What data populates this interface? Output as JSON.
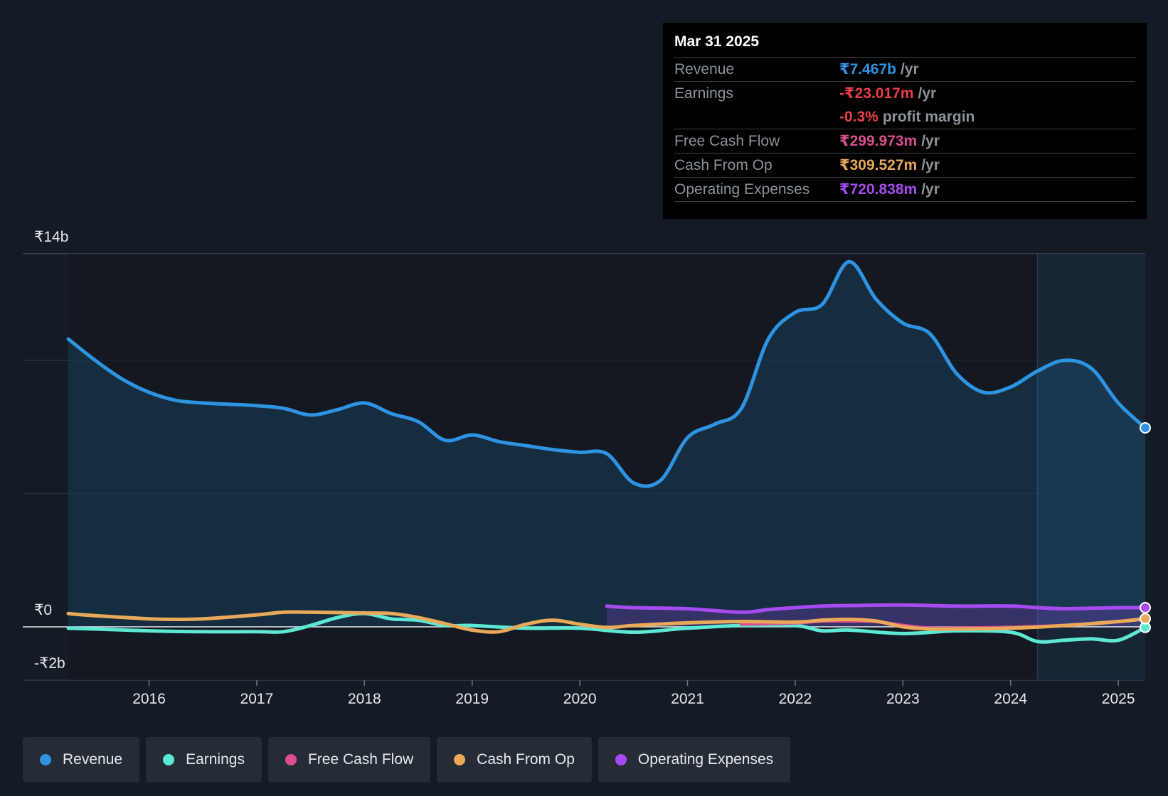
{
  "tooltip": {
    "date": "Mar 31 2025",
    "rows": [
      {
        "label": "Revenue",
        "value": "₹7.467b",
        "unit": "/yr",
        "color": "#2e93e0"
      },
      {
        "label": "Earnings",
        "value": "-₹23.017m",
        "unit": "/yr",
        "color": "#e8404a"
      },
      {
        "label": "",
        "value": "-0.3%",
        "unit": "profit margin",
        "color": "#e8404a"
      },
      {
        "label": "Free Cash Flow",
        "value": "₹299.973m",
        "unit": "/yr",
        "color": "#d94f8f"
      },
      {
        "label": "Cash From Op",
        "value": "₹309.527m",
        "unit": "/yr",
        "color": "#e8a95a"
      },
      {
        "label": "Operating Expenses",
        "value": "₹720.838m",
        "unit": "/yr",
        "color": "#a54bf0"
      }
    ]
  },
  "legend": [
    {
      "label": "Revenue",
      "color": "#2e93e0"
    },
    {
      "label": "Earnings",
      "color": "#5ee8d3"
    },
    {
      "label": "Free Cash Flow",
      "color": "#d94f8f"
    },
    {
      "label": "Cash From Op",
      "color": "#e8a95a"
    },
    {
      "label": "Operating Expenses",
      "color": "#a54bf0"
    }
  ],
  "chart_data": {
    "type": "line",
    "y_tick_labels": {
      "top": "₹14b",
      "zero": "₹0",
      "bottom": "-₹2b"
    },
    "ylim": [
      -2,
      14
    ],
    "xlim": [
      2015.25,
      2025.25
    ],
    "x_ticks": [
      2016,
      2017,
      2018,
      2019,
      2020,
      2021,
      2022,
      2023,
      2024,
      2025
    ],
    "x_tick_labels": [
      "2016",
      "2017",
      "2018",
      "2019",
      "2020",
      "2021",
      "2022",
      "2023",
      "2024",
      "2025"
    ],
    "highlight_from": 2024.25,
    "series": [
      {
        "name": "Revenue",
        "color": "#2e93e0",
        "fill": true,
        "x": [
          2015.25,
          2015.5,
          2015.75,
          2016,
          2016.25,
          2016.5,
          2016.75,
          2017,
          2017.25,
          2017.5,
          2017.75,
          2018,
          2018.25,
          2018.5,
          2018.75,
          2019,
          2019.25,
          2019.5,
          2019.75,
          2020,
          2020.25,
          2020.5,
          2020.75,
          2021,
          2021.25,
          2021.5,
          2021.75,
          2022,
          2022.25,
          2022.5,
          2022.75,
          2023,
          2023.25,
          2023.5,
          2023.75,
          2024,
          2024.25,
          2024.5,
          2024.75,
          2025,
          2025.25
        ],
        "values": [
          10.8,
          10,
          9.3,
          8.8,
          8.5,
          8.4,
          8.35,
          8.3,
          8.2,
          7.95,
          8.15,
          8.4,
          8.0,
          7.7,
          7.0,
          7.2,
          6.95,
          6.8,
          6.65,
          6.55,
          6.5,
          5.4,
          5.5,
          7.1,
          7.6,
          8.2,
          10.8,
          11.8,
          12.1,
          13.7,
          12.3,
          11.4,
          11.0,
          9.5,
          8.8,
          9.0,
          9.6,
          10.0,
          9.7,
          8.4,
          7.467
        ]
      },
      {
        "name": "Earnings",
        "color": "#5ee8d3",
        "x": [
          2015.25,
          2015.5,
          2016,
          2016.5,
          2017,
          2017.25,
          2017.5,
          2017.75,
          2018,
          2018.25,
          2018.5,
          2018.75,
          2019,
          2019.5,
          2020,
          2020.5,
          2021,
          2021.5,
          2022,
          2022.25,
          2022.5,
          2023,
          2023.5,
          2024,
          2024.25,
          2024.5,
          2024.75,
          2025,
          2025.25
        ],
        "values": [
          -0.05,
          -0.08,
          -0.15,
          -0.18,
          -0.18,
          -0.18,
          0.05,
          0.35,
          0.5,
          0.3,
          0.25,
          0.05,
          0.05,
          -0.05,
          -0.05,
          -0.2,
          -0.05,
          0.05,
          0.05,
          -0.15,
          -0.12,
          -0.25,
          -0.15,
          -0.2,
          -0.55,
          -0.5,
          -0.45,
          -0.5,
          -0.02
        ]
      },
      {
        "name": "Free Cash Flow",
        "color": "#d94f8f",
        "x": [
          2021.5,
          2022,
          2022.25,
          2022.5,
          2022.75,
          2023,
          2023.25,
          2023.5,
          2024,
          2024.5,
          2025,
          2025.25
        ],
        "values": [
          0.1,
          0.15,
          0.22,
          0.22,
          0.2,
          0.05,
          -0.05,
          -0.05,
          -0.02,
          0.05,
          0.2,
          0.3
        ]
      },
      {
        "name": "Cash From Op",
        "color": "#e8a95a",
        "x": [
          2015.25,
          2015.5,
          2016,
          2016.25,
          2016.5,
          2017,
          2017.25,
          2017.5,
          2018,
          2018.25,
          2018.5,
          2018.75,
          2019,
          2019.25,
          2019.5,
          2019.75,
          2020,
          2020.25,
          2020.5,
          2021,
          2021.5,
          2022,
          2022.25,
          2022.5,
          2022.75,
          2023,
          2023.25,
          2023.5,
          2024,
          2024.5,
          2025,
          2025.25
        ],
        "values": [
          0.5,
          0.42,
          0.3,
          0.28,
          0.3,
          0.45,
          0.55,
          0.55,
          0.52,
          0.5,
          0.35,
          0.12,
          -0.12,
          -0.18,
          0.1,
          0.25,
          0.1,
          -0.02,
          0.05,
          0.15,
          0.2,
          0.18,
          0.25,
          0.28,
          0.22,
          0.0,
          -0.08,
          -0.08,
          -0.05,
          0.05,
          0.2,
          0.31
        ]
      },
      {
        "name": "Operating Expenses",
        "color": "#a54bf0",
        "fill": true,
        "x": [
          2020.25,
          2020.5,
          2021,
          2021.5,
          2021.75,
          2022,
          2022.25,
          2022.5,
          2023,
          2023.5,
          2024,
          2024.25,
          2024.5,
          2024.75,
          2025,
          2025.25
        ],
        "values": [
          0.78,
          0.72,
          0.68,
          0.55,
          0.65,
          0.72,
          0.78,
          0.8,
          0.82,
          0.78,
          0.78,
          0.72,
          0.68,
          0.7,
          0.72,
          0.72
        ]
      }
    ]
  }
}
